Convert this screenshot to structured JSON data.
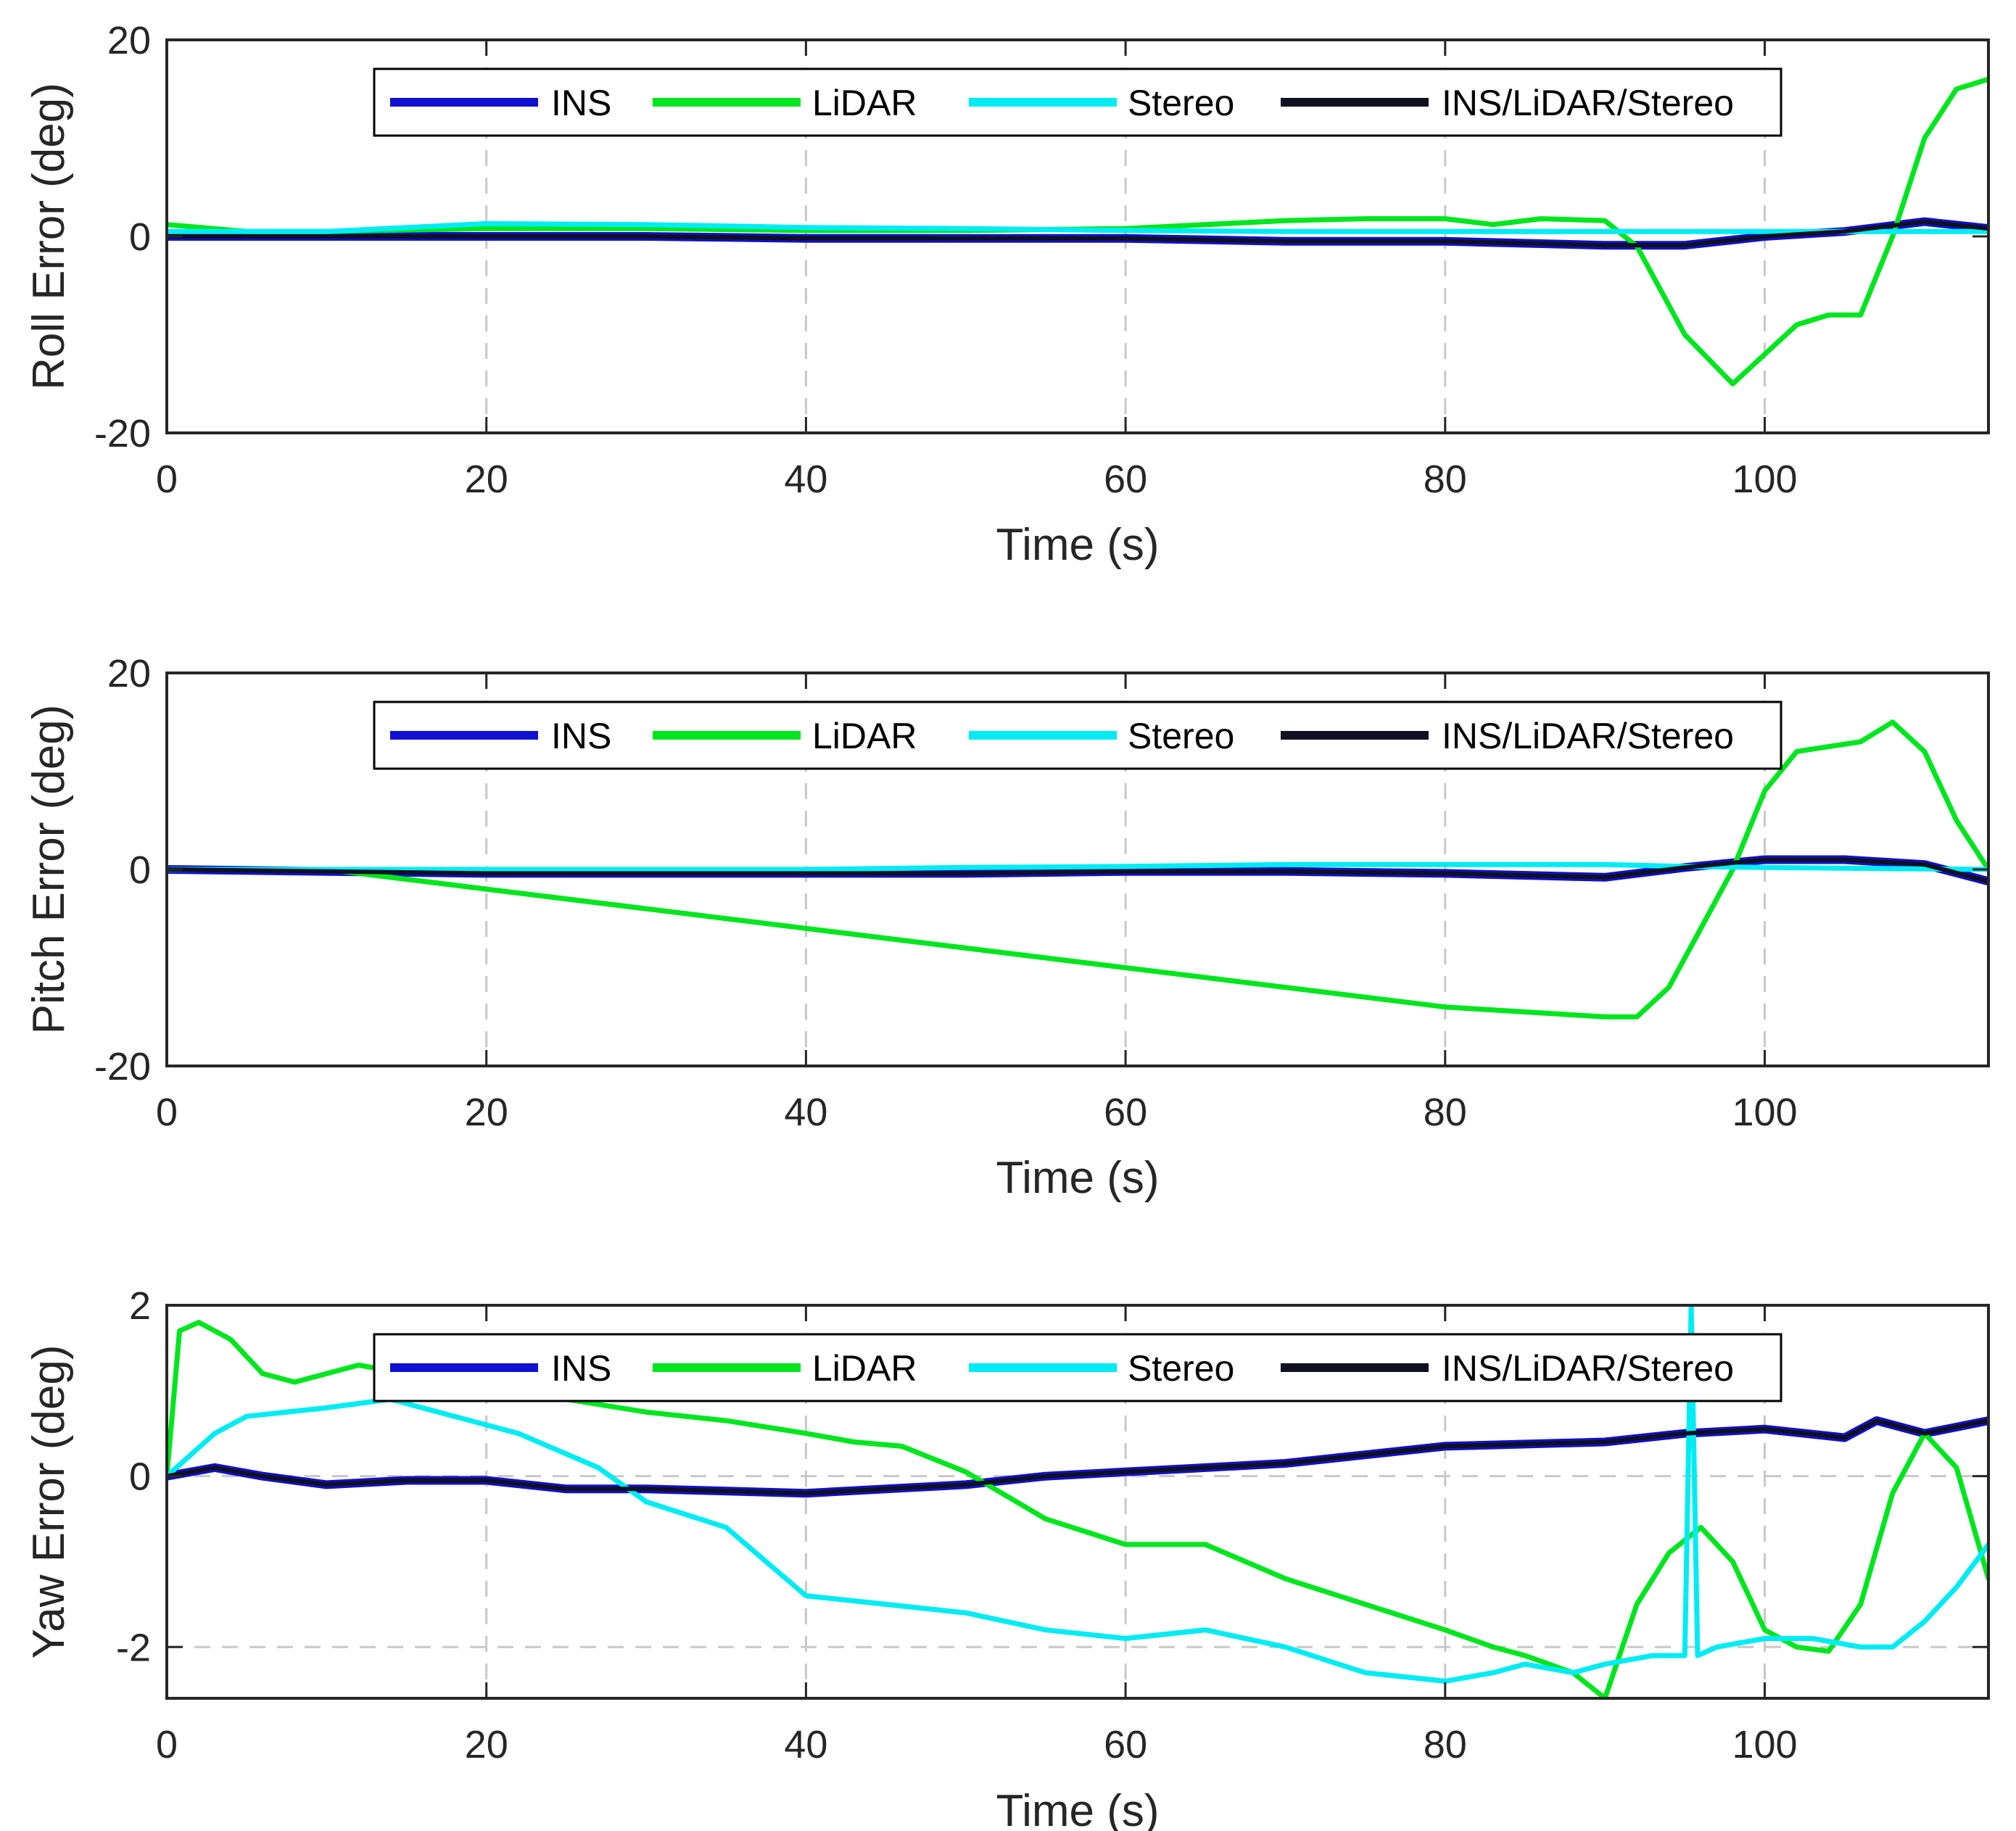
{
  "colors": {
    "INS": "#1010d0",
    "LiDAR": "#00e61e",
    "Stereo": "#00ecf4",
    "INS/LiDAR/Stereo": "#101020",
    "axis": "#262626",
    "grid": "#c8c8c8"
  },
  "chart_data": [
    {
      "type": "line",
      "title": "",
      "xlabel": "Time (s)",
      "ylabel": "Roll Error (deg)",
      "xlim": [
        0,
        114
      ],
      "ylim": [
        -20,
        20
      ],
      "xticks": [
        "0",
        "20",
        "40",
        "60",
        "80",
        "100"
      ],
      "yticks": [
        "-20",
        "0",
        "20"
      ],
      "ygrid": false,
      "legend": [
        "INS",
        "LiDAR",
        "Stereo",
        "INS/LiDAR/Stereo"
      ],
      "legend_position": "top-center",
      "series": [
        {
          "name": "INS",
          "x": [
            0,
            10,
            20,
            30,
            40,
            50,
            60,
            70,
            80,
            90,
            95,
            100,
            105,
            110,
            114
          ],
          "values": [
            0,
            0,
            0,
            0,
            -0.2,
            -0.2,
            -0.2,
            -0.5,
            -0.5,
            -0.9,
            -0.9,
            0,
            0.5,
            1.5,
            0.8
          ]
        },
        {
          "name": "LiDAR",
          "x": [
            0,
            5,
            10,
            20,
            30,
            40,
            50,
            60,
            70,
            75,
            80,
            83,
            86,
            90,
            92,
            95,
            98,
            100,
            102,
            104,
            106,
            108,
            110,
            112,
            114
          ],
          "values": [
            1.2,
            0.5,
            0.5,
            0.8,
            0.8,
            0.6,
            0.6,
            0.8,
            1.6,
            1.8,
            1.8,
            1.2,
            1.8,
            1.6,
            -1,
            -10,
            -15,
            -12,
            -9,
            -8,
            -8,
            0,
            10,
            15,
            16
          ]
        },
        {
          "name": "Stereo",
          "x": [
            0,
            10,
            20,
            30,
            40,
            50,
            60,
            70,
            80,
            90,
            100,
            110,
            114
          ],
          "values": [
            0.5,
            0.5,
            1.3,
            1.2,
            0.9,
            0.8,
            0.6,
            0.5,
            0.5,
            0.5,
            0.5,
            0.5,
            0.5
          ]
        },
        {
          "name": "INS/LiDAR/Stereo",
          "x": [
            0,
            10,
            20,
            30,
            40,
            50,
            60,
            70,
            80,
            90,
            95,
            100,
            105,
            110,
            114
          ],
          "values": [
            0,
            0,
            0,
            0,
            -0.2,
            -0.2,
            -0.2,
            -0.5,
            -0.5,
            -0.9,
            -0.9,
            0,
            0.5,
            1.5,
            0.8
          ]
        }
      ]
    },
    {
      "type": "line",
      "title": "",
      "xlabel": "Time (s)",
      "ylabel": "Pitch Error (deg)",
      "xlim": [
        0,
        114
      ],
      "ylim": [
        -20,
        20
      ],
      "xticks": [
        "0",
        "20",
        "40",
        "60",
        "80",
        "100"
      ],
      "yticks": [
        "-20",
        "0",
        "20"
      ],
      "ygrid": false,
      "legend": [
        "INS",
        "LiDAR",
        "Stereo",
        "INS/LiDAR/Stereo"
      ],
      "legend_position": "top-center",
      "series": [
        {
          "name": "INS",
          "x": [
            0,
            10,
            20,
            30,
            40,
            50,
            60,
            70,
            80,
            90,
            95,
            100,
            105,
            110,
            114
          ],
          "values": [
            0,
            -0.2,
            -0.4,
            -0.4,
            -0.4,
            -0.4,
            -0.2,
            -0.2,
            -0.4,
            -0.8,
            0.2,
            1,
            1,
            0.5,
            -1.2
          ]
        },
        {
          "name": "LiDAR",
          "x": [
            0,
            10,
            20,
            30,
            40,
            50,
            60,
            70,
            80,
            90,
            92,
            94,
            96,
            98,
            100,
            102,
            104,
            106,
            108,
            110,
            112,
            114
          ],
          "values": [
            0,
            0,
            -2,
            -4,
            -6,
            -8,
            -10,
            -12,
            -14,
            -15,
            -15,
            -12,
            -6,
            0,
            8,
            12,
            12.5,
            13,
            15,
            12,
            5,
            0
          ]
        },
        {
          "name": "Stereo",
          "x": [
            0,
            10,
            20,
            30,
            40,
            50,
            60,
            70,
            80,
            90,
            95,
            100,
            114
          ],
          "values": [
            0,
            0,
            0,
            0,
            0,
            0.2,
            0.3,
            0.5,
            0.5,
            0.5,
            0.3,
            0.2,
            0
          ]
        },
        {
          "name": "INS/LiDAR/Stereo",
          "x": [
            0,
            10,
            20,
            30,
            40,
            50,
            60,
            70,
            80,
            90,
            95,
            100,
            105,
            110,
            114
          ],
          "values": [
            0,
            -0.2,
            -0.4,
            -0.4,
            -0.4,
            -0.4,
            -0.2,
            -0.2,
            -0.4,
            -0.8,
            0.2,
            1,
            1,
            0.5,
            -1.2
          ]
        }
      ]
    },
    {
      "type": "line",
      "title": "",
      "xlabel": "Time (s)",
      "ylabel": "Yaw Error (deg)",
      "xlim": [
        0,
        114
      ],
      "ylim": [
        -2.6,
        2
      ],
      "xticks": [
        "0",
        "20",
        "40",
        "60",
        "80",
        "100"
      ],
      "yticks": [
        "-2",
        "0",
        "2"
      ],
      "ygrid": true,
      "legend": [
        "INS",
        "LiDAR",
        "Stereo",
        "INS/LiDAR/Stereo"
      ],
      "legend_position": "top-center",
      "series": [
        {
          "name": "INS",
          "x": [
            0,
            3,
            6,
            10,
            15,
            20,
            25,
            30,
            40,
            50,
            55,
            60,
            70,
            80,
            90,
            95,
            100,
            105,
            107,
            110,
            114
          ],
          "values": [
            0,
            0.1,
            0,
            -0.1,
            -0.05,
            -0.05,
            -0.15,
            -0.15,
            -0.2,
            -0.1,
            0,
            0.05,
            0.15,
            0.35,
            0.4,
            0.5,
            0.55,
            0.45,
            0.65,
            0.5,
            0.65
          ]
        },
        {
          "name": "LiDAR",
          "x": [
            0,
            0.8,
            2,
            4,
            6,
            8,
            10,
            12,
            15,
            20,
            25,
            30,
            35,
            40,
            43,
            46,
            50,
            55,
            60,
            65,
            70,
            75,
            80,
            83,
            85,
            88,
            90,
            92,
            94,
            96,
            98,
            100,
            102,
            104,
            106,
            108,
            110,
            112,
            114
          ],
          "values": [
            0,
            1.7,
            1.8,
            1.6,
            1.2,
            1.1,
            1.2,
            1.3,
            1.2,
            1.0,
            0.9,
            0.75,
            0.65,
            0.5,
            0.4,
            0.35,
            0.05,
            -0.5,
            -0.8,
            -0.8,
            -1.2,
            -1.5,
            -1.8,
            -2.0,
            -2.1,
            -2.3,
            -2.6,
            -1.5,
            -0.9,
            -0.6,
            -1.0,
            -1.8,
            -2.0,
            -2.05,
            -1.5,
            -0.2,
            0.5,
            0.1,
            -1.2
          ]
        },
        {
          "name": "Stereo",
          "x": [
            0,
            3,
            5,
            10,
            14,
            18,
            22,
            27,
            30,
            35,
            40,
            45,
            50,
            55,
            60,
            65,
            70,
            75,
            80,
            83,
            85,
            88,
            90,
            93,
            95,
            95.4,
            95.8,
            97,
            100,
            103,
            106,
            108,
            110,
            112,
            114
          ],
          "values": [
            0,
            0.5,
            0.7,
            0.8,
            0.9,
            0.7,
            0.5,
            0.1,
            -0.3,
            -0.6,
            -1.4,
            -1.5,
            -1.6,
            -1.8,
            -1.9,
            -1.8,
            -2.0,
            -2.3,
            -2.4,
            -2.3,
            -2.2,
            -2.3,
            -2.2,
            -2.1,
            -2.1,
            2.0,
            -2.1,
            -2.0,
            -1.9,
            -1.9,
            -2.0,
            -2.0,
            -1.7,
            -1.3,
            -0.8
          ]
        },
        {
          "name": "INS/LiDAR/Stereo",
          "x": [
            0,
            3,
            6,
            10,
            15,
            20,
            25,
            30,
            40,
            50,
            55,
            60,
            70,
            80,
            90,
            95,
            100,
            105,
            107,
            110,
            114
          ],
          "values": [
            0,
            0.1,
            0,
            -0.1,
            -0.05,
            -0.05,
            -0.15,
            -0.15,
            -0.2,
            -0.1,
            0,
            0.05,
            0.15,
            0.35,
            0.4,
            0.5,
            0.55,
            0.45,
            0.65,
            0.5,
            0.65
          ]
        }
      ]
    }
  ]
}
